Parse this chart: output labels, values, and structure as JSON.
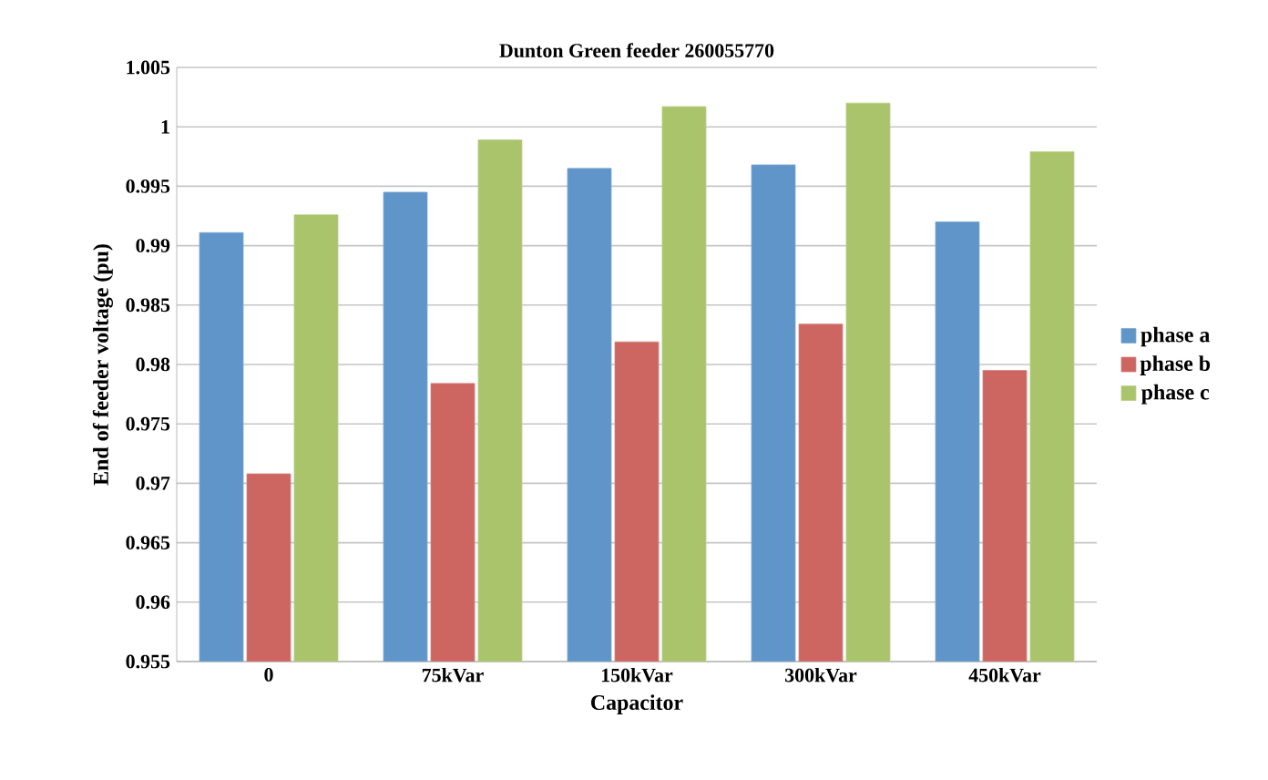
{
  "chart_data": {
    "type": "bar",
    "title": "Dunton Green feeder 260055770",
    "xlabel": "Capacitor",
    "ylabel": "End of feeder voltage (pu)",
    "categories": [
      "0",
      "75kVar",
      "150kVar",
      "300kVar",
      "450kVar"
    ],
    "series": [
      {
        "name": "phase a",
        "color": "#5f95c8",
        "values": [
          0.9911,
          0.9945,
          0.9965,
          0.9968,
          0.992
        ]
      },
      {
        "name": "phase b",
        "color": "#cd6560",
        "values": [
          0.9708,
          0.9784,
          0.9819,
          0.9834,
          0.9795
        ]
      },
      {
        "name": "phase c",
        "color": "#a9c46b",
        "values": [
          0.9926,
          0.9989,
          1.0017,
          1.002,
          0.9979
        ]
      }
    ],
    "ylim": [
      0.955,
      1.005
    ],
    "yticks": [
      0.955,
      0.96,
      0.965,
      0.97,
      0.975,
      0.98,
      0.985,
      0.99,
      0.995,
      1,
      1.005
    ],
    "grid": "y",
    "legend": "right"
  }
}
